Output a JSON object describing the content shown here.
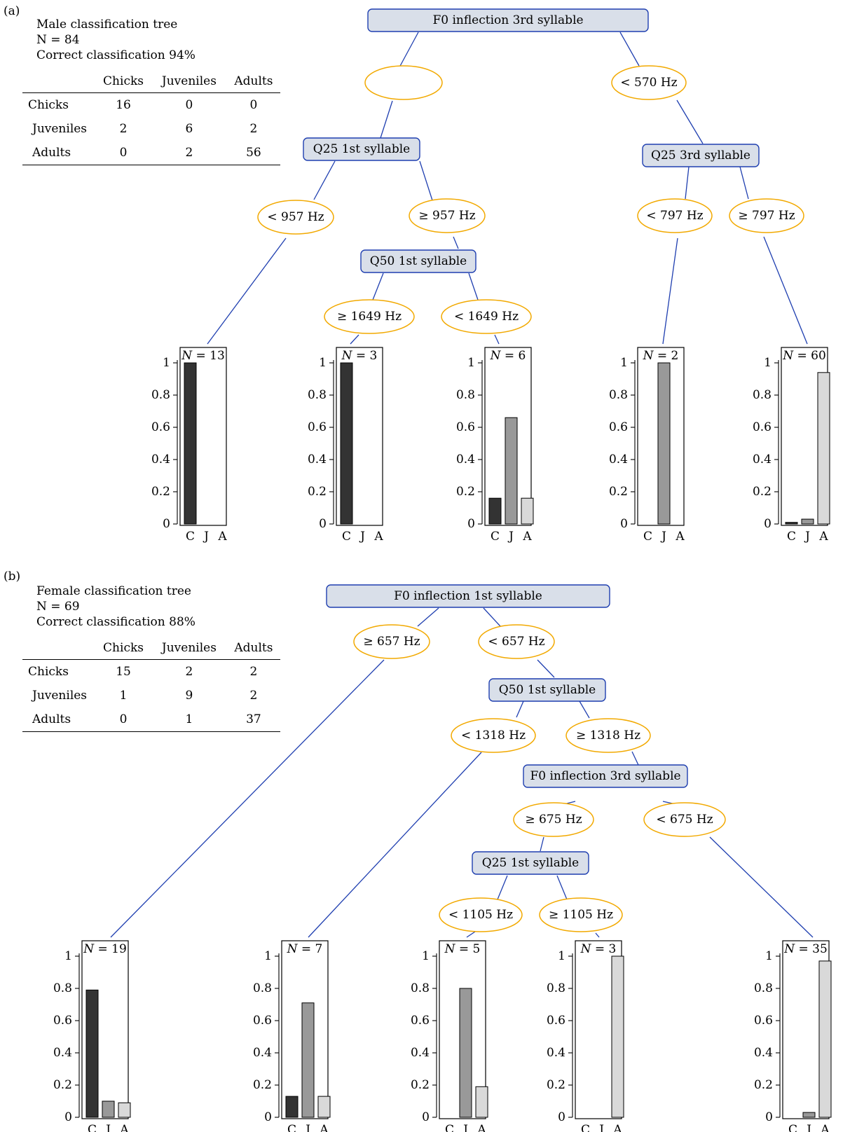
{
  "panel_a": {
    "label": "(a)",
    "title": "Male classification tree",
    "n_text": "N = 84",
    "accuracy_text": "Correct classification 94%",
    "table": {
      "columns": [
        "Chicks",
        "Juveniles",
        "Adults"
      ],
      "rows": [
        {
          "label": "Chicks",
          "values": [
            "16",
            "0",
            "0"
          ]
        },
        {
          "label": "Juveniles",
          "values": [
            "2",
            "6",
            "2"
          ]
        },
        {
          "label": "Adults",
          "values": [
            "0",
            "2",
            "56"
          ]
        }
      ]
    },
    "nodes": {
      "root": "F0 inflection 3rd syllable",
      "q25_1st": "Q25 1st syllable",
      "q25_3rd": "Q25 3rd syllable",
      "q50_1st": "Q50 1st syllable"
    },
    "edges": {
      "root_left": "",
      "root_right": "< 570 Hz",
      "q25_1st_left": "< 957 Hz",
      "q25_1st_right": "≥ 957 Hz",
      "q25_3rd_left": "< 797 Hz",
      "q25_3rd_right": "≥ 797 Hz",
      "q50_1st_left": "≥ 1649 Hz",
      "q50_1st_right": "< 1649 Hz"
    },
    "leaves": [
      {
        "n_text": "N = 13",
        "values": [
          1.0,
          0.0,
          0.0
        ]
      },
      {
        "n_text": "N = 3",
        "values": [
          1.0,
          0.0,
          0.0
        ]
      },
      {
        "n_text": "N = 6",
        "values": [
          0.16,
          0.66,
          0.16
        ]
      },
      {
        "n_text": "N = 2",
        "values": [
          0.0,
          1.0,
          0.0
        ]
      },
      {
        "n_text": "N = 60",
        "values": [
          0.01,
          0.03,
          0.94
        ]
      }
    ]
  },
  "panel_b": {
    "label": "(b)",
    "title": "Female classification tree",
    "n_text": "N = 69",
    "accuracy_text": "Correct classification 88%",
    "table": {
      "columns": [
        "Chicks",
        "Juveniles",
        "Adults"
      ],
      "rows": [
        {
          "label": "Chicks",
          "values": [
            "15",
            "2",
            "2"
          ]
        },
        {
          "label": "Juveniles",
          "values": [
            "1",
            "9",
            "2"
          ]
        },
        {
          "label": "Adults",
          "values": [
            "0",
            "1",
            "37"
          ]
        }
      ]
    },
    "nodes": {
      "root": "F0 inflection 1st syllable",
      "q50_1st": "Q50 1st syllable",
      "f0_3rd": "F0 inflection 3rd syllable",
      "q25_1st": "Q25 1st syllable"
    },
    "edges": {
      "root_left": "≥ 657 Hz",
      "root_right": "< 657 Hz",
      "q50_1st_left": "< 1318 Hz",
      "q50_1st_right": "≥ 1318 Hz",
      "f0_3rd_left": "≥ 675 Hz",
      "f0_3rd_right": "< 675 Hz",
      "q25_1st_left": "< 1105 Hz",
      "q25_1st_right": "≥ 1105 Hz"
    },
    "leaves": [
      {
        "n_text": "N = 19",
        "values": [
          0.79,
          0.1,
          0.09
        ]
      },
      {
        "n_text": "N = 7",
        "values": [
          0.13,
          0.71,
          0.13
        ]
      },
      {
        "n_text": "N = 5",
        "values": [
          0.0,
          0.8,
          0.19
        ]
      },
      {
        "n_text": "N = 3",
        "values": [
          0.0,
          0.0,
          1.0
        ]
      },
      {
        "n_text": "N = 35",
        "values": [
          0.0,
          0.03,
          0.97
        ]
      }
    ]
  },
  "leaf_chart": {
    "categories": [
      "C",
      "J",
      "A"
    ],
    "yticks": [
      "0",
      "0.2",
      "0.4",
      "0.6",
      "0.8",
      "1"
    ],
    "ylim": [
      0,
      1
    ],
    "bar_colors": [
      "#333333",
      "#999999",
      "#d9d9d9"
    ]
  },
  "colors": {
    "node_fill": "#d9dfe9",
    "node_border": "#1f3fb0",
    "edge_line": "#1f3fb0",
    "edge_label_border": "#f2a900"
  }
}
